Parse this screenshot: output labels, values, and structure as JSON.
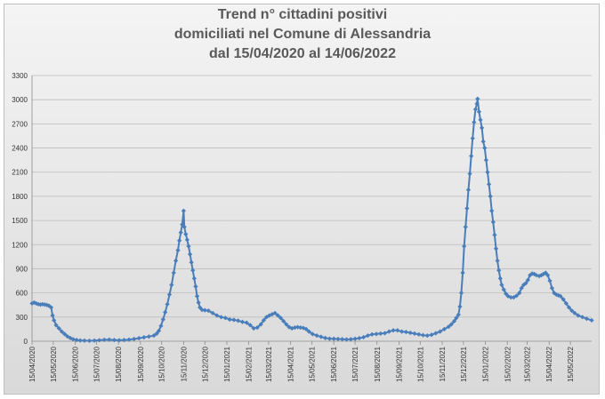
{
  "chart_data": {
    "type": "line",
    "title_lines": [
      "Trend n° cittadini positivi",
      "domiciliati nel Comune di Alessandria",
      "dal 15/04/2020 al 14/06/2022"
    ],
    "xlabel": "",
    "ylabel": "",
    "ylim": [
      0,
      3300
    ],
    "yticks": [
      0,
      300,
      600,
      900,
      1200,
      1500,
      1800,
      2100,
      2400,
      2700,
      3000,
      3300
    ],
    "xlim": [
      "2020-04-15",
      "2022-06-14"
    ],
    "xtick_labels": [
      "15/04/2020",
      "15/05/2020",
      "15/06/2020",
      "15/07/2020",
      "15/08/2020",
      "15/09/2020",
      "15/10/2020",
      "15/11/2020",
      "15/12/2020",
      "15/01/2021",
      "15/02/2021",
      "15/03/2021",
      "15/04/2021",
      "15/05/2021",
      "15/06/2021",
      "15/07/2021",
      "15/08/2021",
      "15/09/2021",
      "15/10/2021",
      "15/11/2021",
      "15/12/2021",
      "15/01/2022",
      "15/02/2022",
      "15/03/2022",
      "15/04/2022",
      "15/05/2022"
    ],
    "grid": "horizontal",
    "legend": "none",
    "series": [
      {
        "color": "#4a7ebb",
        "points": [
          [
            "2020-04-15",
            470
          ],
          [
            "2020-04-18",
            480
          ],
          [
            "2020-04-21",
            470
          ],
          [
            "2020-04-24",
            460
          ],
          [
            "2020-04-27",
            455
          ],
          [
            "2020-04-30",
            460
          ],
          [
            "2020-05-03",
            455
          ],
          [
            "2020-05-06",
            450
          ],
          [
            "2020-05-09",
            440
          ],
          [
            "2020-05-12",
            420
          ],
          [
            "2020-05-14",
            320
          ],
          [
            "2020-05-16",
            260
          ],
          [
            "2020-05-19",
            200
          ],
          [
            "2020-05-23",
            160
          ],
          [
            "2020-05-27",
            120
          ],
          [
            "2020-05-31",
            90
          ],
          [
            "2020-06-04",
            60
          ],
          [
            "2020-06-08",
            40
          ],
          [
            "2020-06-12",
            25
          ],
          [
            "2020-06-17",
            15
          ],
          [
            "2020-06-22",
            10
          ],
          [
            "2020-06-28",
            8
          ],
          [
            "2020-07-05",
            6
          ],
          [
            "2020-07-12",
            8
          ],
          [
            "2020-07-19",
            12
          ],
          [
            "2020-07-26",
            18
          ],
          [
            "2020-08-02",
            20
          ],
          [
            "2020-08-09",
            15
          ],
          [
            "2020-08-16",
            12
          ],
          [
            "2020-08-23",
            15
          ],
          [
            "2020-08-30",
            20
          ],
          [
            "2020-09-06",
            28
          ],
          [
            "2020-09-13",
            38
          ],
          [
            "2020-09-20",
            48
          ],
          [
            "2020-09-27",
            58
          ],
          [
            "2020-10-04",
            70
          ],
          [
            "2020-10-08",
            95
          ],
          [
            "2020-10-11",
            130
          ],
          [
            "2020-10-14",
            190
          ],
          [
            "2020-10-17",
            270
          ],
          [
            "2020-10-20",
            360
          ],
          [
            "2020-10-23",
            460
          ],
          [
            "2020-10-26",
            580
          ],
          [
            "2020-10-29",
            700
          ],
          [
            "2020-11-01",
            850
          ],
          [
            "2020-11-04",
            1000
          ],
          [
            "2020-11-07",
            1130
          ],
          [
            "2020-11-09",
            1250
          ],
          [
            "2020-11-11",
            1350
          ],
          [
            "2020-11-13",
            1450
          ],
          [
            "2020-11-15",
            1620
          ],
          [
            "2020-11-16",
            1420
          ],
          [
            "2020-11-18",
            1330
          ],
          [
            "2020-11-20",
            1260
          ],
          [
            "2020-11-22",
            1180
          ],
          [
            "2020-11-24",
            1080
          ],
          [
            "2020-11-26",
            980
          ],
          [
            "2020-11-28",
            880
          ],
          [
            "2020-11-30",
            780
          ],
          [
            "2020-12-02",
            680
          ],
          [
            "2020-12-04",
            560
          ],
          [
            "2020-12-06",
            480
          ],
          [
            "2020-12-08",
            420
          ],
          [
            "2020-12-11",
            390
          ],
          [
            "2020-12-15",
            385
          ],
          [
            "2020-12-20",
            380
          ],
          [
            "2020-12-26",
            350
          ],
          [
            "2021-01-01",
            320
          ],
          [
            "2021-01-07",
            300
          ],
          [
            "2021-01-13",
            290
          ],
          [
            "2021-01-19",
            270
          ],
          [
            "2021-01-25",
            265
          ],
          [
            "2021-01-31",
            255
          ],
          [
            "2021-02-06",
            240
          ],
          [
            "2021-02-12",
            230
          ],
          [
            "2021-02-17",
            200
          ],
          [
            "2021-02-22",
            160
          ],
          [
            "2021-02-27",
            170
          ],
          [
            "2021-03-04",
            210
          ],
          [
            "2021-03-08",
            260
          ],
          [
            "2021-03-12",
            300
          ],
          [
            "2021-03-16",
            320
          ],
          [
            "2021-03-20",
            335
          ],
          [
            "2021-03-24",
            350
          ],
          [
            "2021-03-28",
            320
          ],
          [
            "2021-04-01",
            290
          ],
          [
            "2021-04-05",
            250
          ],
          [
            "2021-04-09",
            210
          ],
          [
            "2021-04-13",
            175
          ],
          [
            "2021-04-17",
            160
          ],
          [
            "2021-04-21",
            170
          ],
          [
            "2021-04-25",
            175
          ],
          [
            "2021-04-29",
            170
          ],
          [
            "2021-05-03",
            165
          ],
          [
            "2021-05-07",
            150
          ],
          [
            "2021-05-11",
            120
          ],
          [
            "2021-05-16",
            90
          ],
          [
            "2021-05-22",
            70
          ],
          [
            "2021-05-28",
            55
          ],
          [
            "2021-06-03",
            40
          ],
          [
            "2021-06-09",
            32
          ],
          [
            "2021-06-15",
            30
          ],
          [
            "2021-06-21",
            28
          ],
          [
            "2021-06-27",
            25
          ],
          [
            "2021-07-03",
            22
          ],
          [
            "2021-07-09",
            25
          ],
          [
            "2021-07-15",
            30
          ],
          [
            "2021-07-21",
            38
          ],
          [
            "2021-07-27",
            50
          ],
          [
            "2021-08-02",
            70
          ],
          [
            "2021-08-08",
            85
          ],
          [
            "2021-08-14",
            90
          ],
          [
            "2021-08-20",
            95
          ],
          [
            "2021-08-26",
            100
          ],
          [
            "2021-09-01",
            120
          ],
          [
            "2021-09-07",
            135
          ],
          [
            "2021-09-13",
            135
          ],
          [
            "2021-09-19",
            120
          ],
          [
            "2021-09-25",
            115
          ],
          [
            "2021-10-01",
            105
          ],
          [
            "2021-10-07",
            95
          ],
          [
            "2021-10-13",
            85
          ],
          [
            "2021-10-19",
            75
          ],
          [
            "2021-10-25",
            70
          ],
          [
            "2021-10-31",
            80
          ],
          [
            "2021-11-06",
            100
          ],
          [
            "2021-11-12",
            120
          ],
          [
            "2021-11-18",
            150
          ],
          [
            "2021-11-24",
            180
          ],
          [
            "2021-11-28",
            210
          ],
          [
            "2021-12-02",
            250
          ],
          [
            "2021-12-05",
            290
          ],
          [
            "2021-12-08",
            330
          ],
          [
            "2021-12-10",
            430
          ],
          [
            "2021-12-12",
            600
          ],
          [
            "2021-12-14",
            850
          ],
          [
            "2021-12-16",
            1180
          ],
          [
            "2021-12-18",
            1420
          ],
          [
            "2021-12-20",
            1650
          ],
          [
            "2021-12-22",
            1880
          ],
          [
            "2021-12-24",
            2080
          ],
          [
            "2021-12-26",
            2300
          ],
          [
            "2021-12-28",
            2520
          ],
          [
            "2021-12-30",
            2720
          ],
          [
            "2022-01-01",
            2880
          ],
          [
            "2022-01-03",
            2950
          ],
          [
            "2022-01-04",
            3010
          ],
          [
            "2022-01-06",
            2850
          ],
          [
            "2022-01-08",
            2750
          ],
          [
            "2022-01-10",
            2650
          ],
          [
            "2022-01-12",
            2480
          ],
          [
            "2022-01-14",
            2400
          ],
          [
            "2022-01-16",
            2250
          ],
          [
            "2022-01-18",
            2100
          ],
          [
            "2022-01-20",
            1950
          ],
          [
            "2022-01-22",
            1800
          ],
          [
            "2022-01-24",
            1620
          ],
          [
            "2022-01-26",
            1480
          ],
          [
            "2022-01-28",
            1320
          ],
          [
            "2022-01-30",
            1150
          ],
          [
            "2022-02-01",
            1000
          ],
          [
            "2022-02-03",
            880
          ],
          [
            "2022-02-05",
            780
          ],
          [
            "2022-02-07",
            700
          ],
          [
            "2022-02-10",
            640
          ],
          [
            "2022-02-13",
            590
          ],
          [
            "2022-02-16",
            560
          ],
          [
            "2022-02-20",
            545
          ],
          [
            "2022-02-24",
            545
          ],
          [
            "2022-02-28",
            565
          ],
          [
            "2022-03-04",
            600
          ],
          [
            "2022-03-07",
            660
          ],
          [
            "2022-03-10",
            700
          ],
          [
            "2022-03-13",
            720
          ],
          [
            "2022-03-16",
            760
          ],
          [
            "2022-03-19",
            820
          ],
          [
            "2022-03-22",
            840
          ],
          [
            "2022-03-25",
            835
          ],
          [
            "2022-03-28",
            820
          ],
          [
            "2022-04-01",
            810
          ],
          [
            "2022-04-04",
            820
          ],
          [
            "2022-04-07",
            835
          ],
          [
            "2022-04-10",
            850
          ],
          [
            "2022-04-13",
            820
          ],
          [
            "2022-04-16",
            750
          ],
          [
            "2022-04-19",
            660
          ],
          [
            "2022-04-22",
            600
          ],
          [
            "2022-04-25",
            580
          ],
          [
            "2022-04-28",
            570
          ],
          [
            "2022-05-01",
            560
          ],
          [
            "2022-05-05",
            520
          ],
          [
            "2022-05-09",
            470
          ],
          [
            "2022-05-13",
            420
          ],
          [
            "2022-05-17",
            380
          ],
          [
            "2022-05-21",
            350
          ],
          [
            "2022-05-26",
            320
          ],
          [
            "2022-06-01",
            300
          ],
          [
            "2022-06-07",
            280
          ],
          [
            "2022-06-14",
            260
          ]
        ]
      }
    ]
  }
}
